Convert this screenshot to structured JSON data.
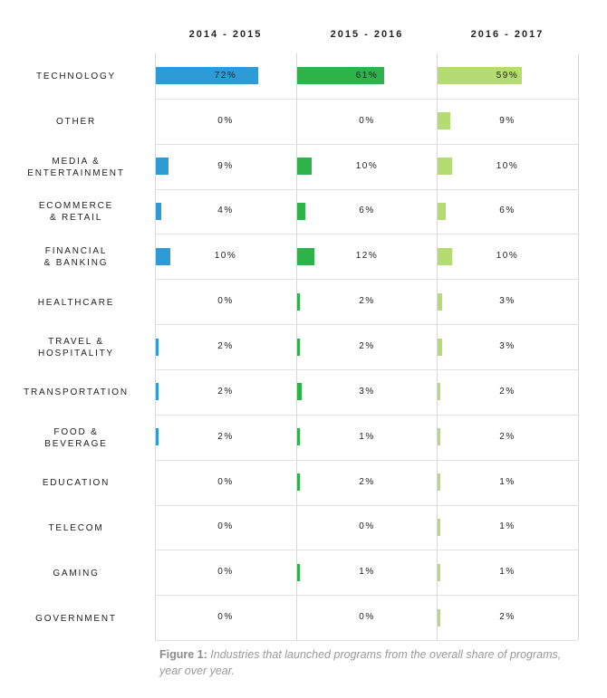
{
  "chart_data": {
    "type": "bar",
    "series": [
      {
        "name": "2014 - 2015",
        "color": "#2f9bd6",
        "values": [
          72,
          0,
          9,
          4,
          10,
          0,
          2,
          2,
          2,
          0,
          0,
          0,
          0
        ]
      },
      {
        "name": "2015 - 2016",
        "color": "#2db34a",
        "values": [
          61,
          0,
          10,
          6,
          12,
          2,
          2,
          3,
          1,
          2,
          0,
          1,
          0
        ]
      },
      {
        "name": "2016 - 2017",
        "color": "#b5dc72",
        "values": [
          59,
          9,
          10,
          6,
          10,
          3,
          3,
          2,
          2,
          1,
          1,
          1,
          2
        ]
      }
    ],
    "categories": [
      "TECHNOLOGY",
      "OTHER",
      "MEDIA &\nENTERTAINMENT",
      "ECOMMERCE\n& RETAIL",
      "FINANCIAL\n& BANKING",
      "HEALTHCARE",
      "TRAVEL &\nHOSPITALITY",
      "TRANSPORTATION",
      "FOOD &\nBEVERAGE",
      "EDUCATION",
      "TELECOM",
      "GAMING",
      "GOVERNMENT"
    ],
    "value_labels": [
      [
        "72%",
        "0%",
        "9%",
        "4%",
        "10%",
        "0%",
        "2%",
        "2%",
        "2%",
        "0%",
        "0%",
        "0%",
        "0%"
      ],
      [
        "61%",
        "0%",
        "10%",
        "6%",
        "12%",
        "2%",
        "2%",
        "3%",
        "1%",
        "2%",
        "0%",
        "1%",
        "0%"
      ],
      [
        "59%",
        "9%",
        "10%",
        "6%",
        "10%",
        "3%",
        "3%",
        "2%",
        "2%",
        "1%",
        "1%",
        "1%",
        "2%"
      ]
    ],
    "unit": "%",
    "title": "",
    "xlabel": "",
    "ylabel": ""
  },
  "caption": {
    "figure": "Figure 1:",
    "text": " Industries that launched programs from the overall share of programs, year over year."
  }
}
